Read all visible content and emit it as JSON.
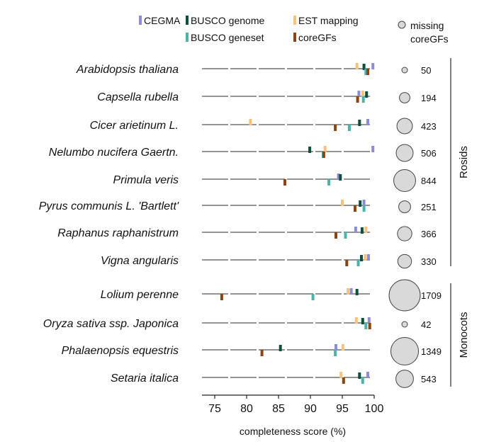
{
  "chart_data": {
    "type": "scatter",
    "xlabel": "completeness score (%)",
    "xlim": [
      73,
      100
    ],
    "xticks": [
      75,
      80,
      85,
      90,
      95,
      100
    ],
    "legend": {
      "items": [
        {
          "key": "cegma",
          "label": "CEGMA",
          "color": "#8f8cd6"
        },
        {
          "key": "busco_genome",
          "label": "BUSCO genome",
          "color": "#0d4f3f"
        },
        {
          "key": "est",
          "label": "EST mapping",
          "color": "#f9c27a"
        },
        {
          "key": "busco_geneset",
          "label": "BUSCO geneset",
          "color": "#4cb3ac"
        },
        {
          "key": "coregfs",
          "label": "coreGFs",
          "color": "#8b4513"
        }
      ],
      "circle_label_line1": "missing",
      "circle_label_line2": "coreGFs"
    },
    "groups": [
      {
        "name": "Rosids",
        "species": [
          "Arabidopsis thaliana",
          "Capsella rubella",
          "Cicer arietinum L.",
          "Nelumbo nucifera Gaertn.",
          "Primula veris",
          "Pyrus communis L. 'Bartlett'",
          "Raphanus raphanistrum",
          "Vigna angularis"
        ]
      },
      {
        "name": "Monocots",
        "species": [
          "Lolium perenne",
          "Oryza sativa ssp. Japonica",
          "Phalaenopsis equestris",
          "Setaria italica"
        ]
      }
    ],
    "rows": [
      {
        "species": "Arabidopsis thaliana",
        "missing": 50,
        "missing_label": "50",
        "cegma": 99.8,
        "busco_genome": 98.4,
        "est": 97.3,
        "busco_geneset": 98.7,
        "coregfs": 99.0
      },
      {
        "species": "Capsella rubella",
        "missing": 194,
        "missing_label": "194",
        "cegma": 97.6,
        "busco_genome": 98.8,
        "est": 98.2,
        "busco_geneset": 98.3,
        "coregfs": 97.4
      },
      {
        "species": "Cicer arietinum L.",
        "missing": 423,
        "missing_label": "423",
        "cegma": 99.0,
        "busco_genome": 97.7,
        "est": 80.6,
        "busco_geneset": 96.1,
        "coregfs": 93.9
      },
      {
        "species": "Nelumbo nucifera Gaertn.",
        "missing": 506,
        "missing_label": "506",
        "cegma": 99.8,
        "busco_genome": 89.9,
        "est": 92.3,
        "busco_geneset": 92.0,
        "coregfs": 92.1
      },
      {
        "species": "Primula veris",
        "missing": 844,
        "missing_label": "844",
        "cegma": 94.4,
        "busco_genome": 94.7,
        "est": null,
        "busco_geneset": 92.9,
        "coregfs": 86.0
      },
      {
        "species": "Pyrus communis L. 'Bartlett'",
        "missing": 251,
        "missing_label": "251",
        "cegma": 98.4,
        "busco_genome": 97.8,
        "est": 95.0,
        "busco_geneset": 98.4,
        "coregfs": 97.0
      },
      {
        "species": "Raphanus raphanistrum",
        "missing": 366,
        "missing_label": "366",
        "cegma": 97.1,
        "busco_genome": 98.1,
        "est": 98.7,
        "busco_geneset": 95.5,
        "coregfs": 94.0
      },
      {
        "species": "Vigna angularis",
        "missing": 330,
        "missing_label": "330",
        "cegma": 99.1,
        "busco_genome": 98.0,
        "est": 98.6,
        "busco_geneset": 97.5,
        "coregfs": 95.7
      },
      {
        "species": "Lolium perenne",
        "missing": 1709,
        "missing_label": "1709",
        "cegma": 96.4,
        "busco_genome": 97.3,
        "est": 95.9,
        "busco_geneset": 90.4,
        "coregfs": 76.1
      },
      {
        "species": "Oryza sativa ssp. Japonica",
        "missing": 42,
        "missing_label": "42",
        "cegma": 99.2,
        "busco_genome": 98.2,
        "est": 97.2,
        "busco_geneset": 98.7,
        "coregfs": 99.3
      },
      {
        "species": "Phalaenopsis equestris",
        "missing": 1349,
        "missing_label": "1349",
        "cegma": 94.0,
        "busco_genome": 85.3,
        "est": 95.1,
        "busco_geneset": 93.9,
        "coregfs": 82.4
      },
      {
        "species": "Setaria italica",
        "missing": 543,
        "missing_label": "543",
        "cegma": 99.0,
        "busco_genome": 97.7,
        "est": 94.8,
        "busco_geneset": 98.2,
        "coregfs": 95.2
      }
    ]
  }
}
